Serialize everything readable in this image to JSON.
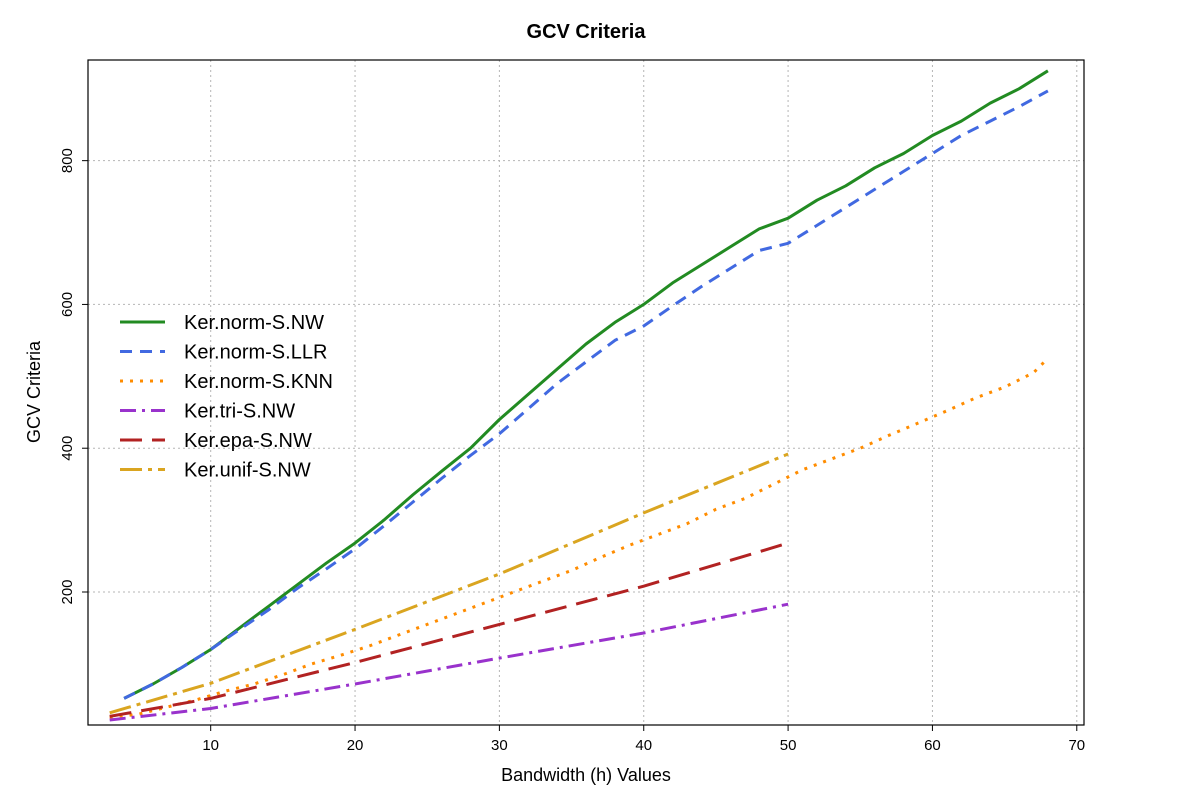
{
  "chart_data": {
    "type": "line",
    "title": "GCV Criteria",
    "xlabel": "Bandwidth (h) Values",
    "ylabel": "GCV Criteria",
    "xlim": [
      1.5,
      70.5
    ],
    "ylim": [
      15,
      940
    ],
    "xticks": [
      10,
      20,
      30,
      40,
      50,
      60,
      70
    ],
    "yticks": [
      200,
      400,
      600,
      800
    ],
    "grid": true,
    "legend_position": "center-left",
    "series": [
      {
        "name": "Ker.norm-S.NW",
        "color": "#228B22",
        "dash": "solid",
        "x": [
          4,
          6,
          8,
          10,
          12,
          14,
          16,
          18,
          20,
          22,
          24,
          26,
          28,
          30,
          32,
          34,
          36,
          38,
          40,
          42,
          44,
          46,
          48,
          50,
          52,
          54,
          56,
          58,
          60,
          62,
          64,
          66,
          68
        ],
        "y": [
          52,
          72,
          95,
          120,
          150,
          180,
          210,
          240,
          268,
          300,
          335,
          368,
          400,
          440,
          475,
          510,
          545,
          575,
          600,
          630,
          655,
          680,
          705,
          720,
          745,
          765,
          790,
          810,
          835,
          855,
          880,
          900,
          925
        ]
      },
      {
        "name": "Ker.norm-S.LLR",
        "color": "#4169E1",
        "dash": "12,8",
        "x": [
          4,
          6,
          8,
          10,
          12,
          14,
          16,
          18,
          20,
          22,
          24,
          26,
          28,
          30,
          32,
          34,
          36,
          38,
          40,
          42,
          44,
          46,
          48,
          50,
          52,
          54,
          56,
          58,
          60,
          62,
          64,
          66,
          68
        ],
        "y": [
          52,
          72,
          95,
          120,
          148,
          175,
          205,
          232,
          260,
          292,
          325,
          358,
          390,
          420,
          455,
          490,
          520,
          550,
          570,
          598,
          625,
          650,
          675,
          685,
          710,
          735,
          760,
          785,
          810,
          835,
          855,
          875,
          897
        ]
      },
      {
        "name": "Ker.norm-S.KNN",
        "color": "#FF8C00",
        "dash": "3,7",
        "x": [
          3,
          5,
          7,
          9,
          11,
          13,
          15,
          17,
          19,
          21,
          23,
          25,
          27,
          29,
          31,
          33,
          35,
          37,
          39,
          41,
          43,
          45,
          47,
          49,
          51,
          53,
          55,
          57,
          59,
          61,
          63,
          65,
          67,
          68
        ],
        "y": [
          25,
          30,
          40,
          50,
          62,
          72,
          85,
          100,
          112,
          125,
          140,
          155,
          170,
          185,
          200,
          215,
          230,
          248,
          265,
          280,
          295,
          315,
          330,
          350,
          370,
          385,
          400,
          418,
          435,
          452,
          470,
          485,
          505,
          525
        ]
      },
      {
        "name": "Ker.tri-S.NW",
        "color": "#9932CC",
        "dash": "16,6,3,6",
        "x": [
          3,
          10,
          20,
          30,
          40,
          50
        ],
        "y": [
          22,
          38,
          72,
          108,
          143,
          183
        ]
      },
      {
        "name": "Ker.epa-S.NW",
        "color": "#B22222",
        "dash": "22,10",
        "x": [
          3,
          10,
          20,
          30,
          40,
          50
        ],
        "y": [
          27,
          52,
          102,
          155,
          208,
          268
        ]
      },
      {
        "name": "Ker.unif-S.NW",
        "color": "#DAA520",
        "dash": "22,6,4,6",
        "x": [
          3,
          10,
          20,
          30,
          40,
          50
        ],
        "y": [
          32,
          73,
          148,
          225,
          310,
          392
        ]
      }
    ]
  }
}
